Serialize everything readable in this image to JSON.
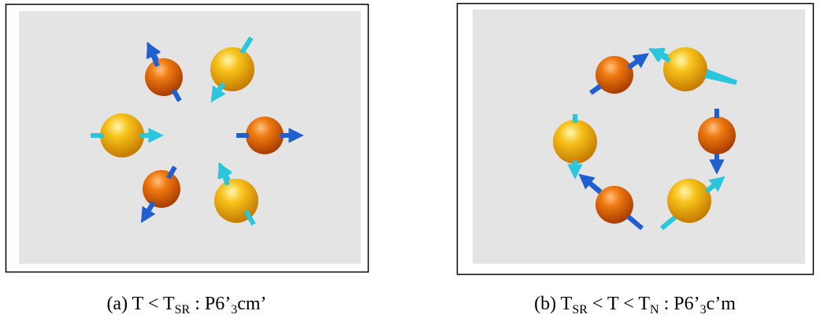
{
  "panels": [
    {
      "caption": [
        {
          "text": "(a) T < T"
        },
        {
          "text": "SR",
          "sub": true
        },
        {
          "text": " :   P6’"
        },
        {
          "text": "3",
          "sub": true
        },
        {
          "text": "cm’"
        }
      ]
    },
    {
      "caption": [
        {
          "text": "(b) T"
        },
        {
          "text": "SR",
          "sub": true
        },
        {
          "text": " < T < T"
        },
        {
          "text": "N",
          "sub": true
        },
        {
          "text": " :   P6’"
        },
        {
          "text": "3",
          "sub": true
        },
        {
          "text": "c’m"
        }
      ]
    }
  ]
}
